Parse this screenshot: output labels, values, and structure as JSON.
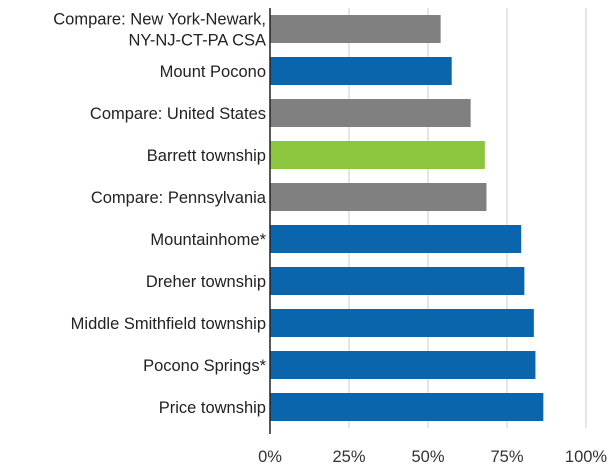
{
  "chart_data": {
    "type": "bar",
    "orientation": "horizontal",
    "categories": [
      "Compare: New York-Newark,\nNY-NJ-CT-PA CSA",
      "Mount Pocono",
      "Compare: United States",
      "Barrett township",
      "Compare: Pennsylvania",
      "Mountainhome*",
      "Dreher township",
      "Middle Smithfield township",
      "Pocono Springs*",
      "Price township"
    ],
    "values": [
      54,
      57.5,
      63.5,
      68,
      68.5,
      79.5,
      80.5,
      83.5,
      84,
      86.5
    ],
    "bar_colors": [
      "#808080",
      "#0b65ac",
      "#808080",
      "#8cc63f",
      "#808080",
      "#0b65ac",
      "#0b65ac",
      "#0b65ac",
      "#0b65ac",
      "#0b65ac"
    ],
    "xticks": [
      "0%",
      "25%",
      "50%",
      "75%",
      "100%"
    ],
    "xtick_values": [
      0,
      25,
      50,
      75,
      100
    ],
    "xlim": [
      0,
      100
    ],
    "grid": true,
    "legend": "none"
  }
}
